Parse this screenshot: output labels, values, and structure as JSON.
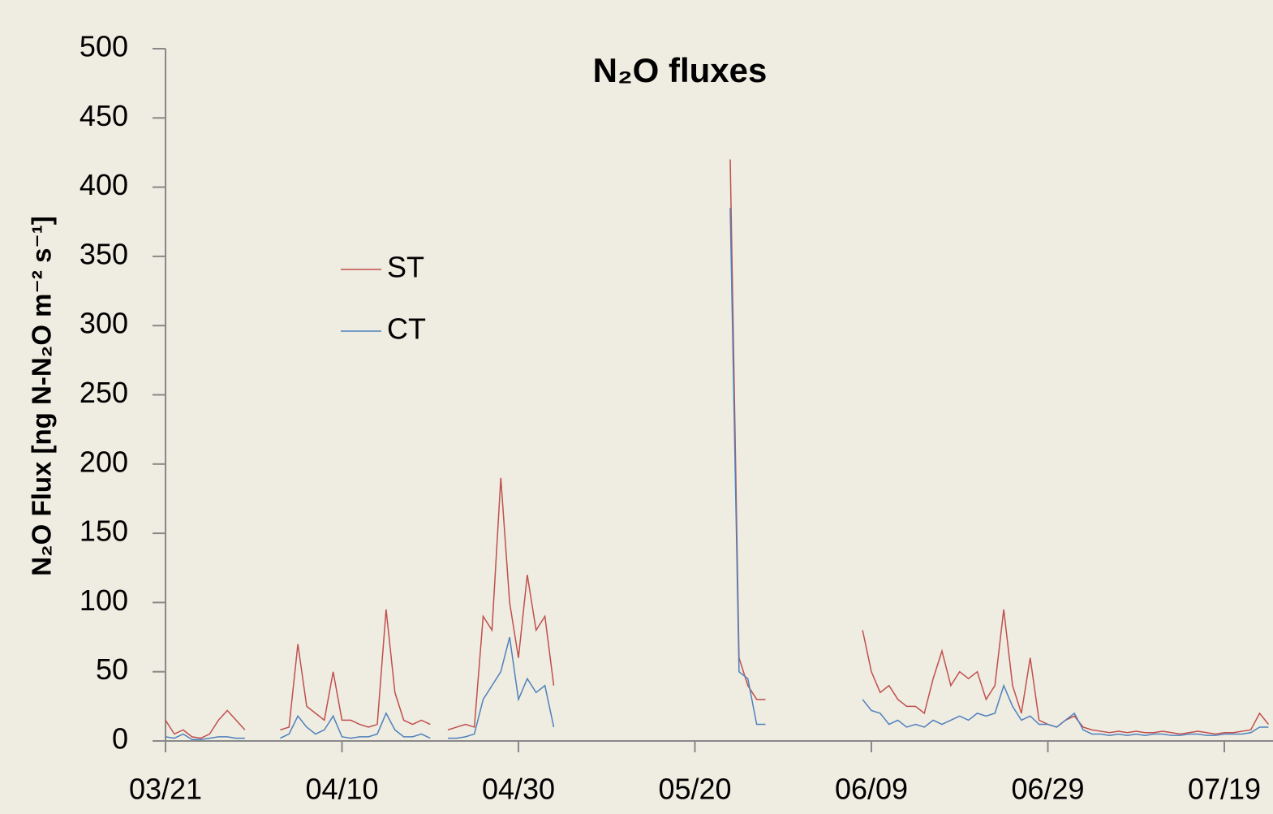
{
  "chart_data": {
    "type": "line",
    "title": "N₂O fluxes",
    "y_label": "N₂O Flux [ng N-N₂O m⁻² s⁻¹]",
    "x": [
      "03/21",
      "03/22",
      "03/23",
      "03/24",
      "03/25",
      "03/26",
      "03/27",
      "03/28",
      "03/29",
      "03/30",
      "03/31",
      "04/01",
      "04/02",
      "04/03",
      "04/04",
      "04/05",
      "04/06",
      "04/07",
      "04/08",
      "04/09",
      "04/10",
      "04/11",
      "04/12",
      "04/13",
      "04/14",
      "04/15",
      "04/16",
      "04/17",
      "04/18",
      "04/19",
      "04/20",
      "04/21",
      "04/22",
      "04/23",
      "04/24",
      "04/25",
      "04/26",
      "04/27",
      "04/28",
      "04/29",
      "04/30",
      "05/01",
      "05/02",
      "05/03",
      "05/04",
      "05/05",
      "05/06",
      "05/07",
      "05/08",
      "05/09",
      "05/10",
      "05/11",
      "05/12",
      "05/13",
      "05/14",
      "05/15",
      "05/16",
      "05/17",
      "05/18",
      "05/19",
      "05/20",
      "05/21",
      "05/22",
      "05/23",
      "05/24",
      "05/25",
      "05/26",
      "05/27",
      "05/28",
      "05/29",
      "05/30",
      "05/31",
      "06/01",
      "06/02",
      "06/03",
      "06/04",
      "06/05",
      "06/06",
      "06/07",
      "06/08",
      "06/09",
      "06/10",
      "06/11",
      "06/12",
      "06/13",
      "06/14",
      "06/15",
      "06/16",
      "06/17",
      "06/18",
      "06/19",
      "06/20",
      "06/21",
      "06/22",
      "06/23",
      "06/24",
      "06/25",
      "06/26",
      "06/27",
      "06/28",
      "06/29",
      "06/30",
      "07/01",
      "07/02",
      "07/03",
      "07/04",
      "07/05",
      "07/06",
      "07/07",
      "07/08",
      "07/09",
      "07/10",
      "07/11",
      "07/12",
      "07/13",
      "07/14",
      "07/15",
      "07/16",
      "07/17",
      "07/18",
      "07/19",
      "07/20",
      "07/21",
      "07/22",
      "07/23",
      "07/24"
    ],
    "series": [
      {
        "name": "ST",
        "color": "#c0504d",
        "values": [
          15,
          5,
          8,
          3,
          2,
          5,
          15,
          22,
          15,
          8,
          null,
          null,
          null,
          8,
          10,
          70,
          25,
          20,
          15,
          50,
          15,
          15,
          12,
          10,
          12,
          95,
          35,
          15,
          12,
          15,
          12,
          null,
          8,
          10,
          12,
          10,
          90,
          80,
          190,
          100,
          60,
          120,
          80,
          90,
          40,
          null,
          null,
          null,
          null,
          null,
          null,
          null,
          null,
          null,
          null,
          null,
          null,
          null,
          null,
          null,
          null,
          null,
          null,
          null,
          420,
          60,
          40,
          30,
          30,
          null,
          null,
          null,
          null,
          null,
          null,
          null,
          null,
          null,
          null,
          80,
          50,
          35,
          40,
          30,
          25,
          25,
          20,
          45,
          65,
          40,
          50,
          45,
          50,
          30,
          40,
          95,
          40,
          20,
          60,
          15,
          12,
          10,
          15,
          18,
          10,
          8,
          7,
          6,
          7,
          6,
          7,
          6,
          6,
          7,
          6,
          5,
          6,
          7,
          6,
          5,
          6,
          6,
          7,
          8,
          20,
          12
        ]
      },
      {
        "name": "CT",
        "color": "#4f81bd",
        "values": [
          3,
          2,
          5,
          1,
          1,
          2,
          3,
          3,
          2,
          2,
          null,
          null,
          null,
          2,
          5,
          18,
          10,
          5,
          8,
          18,
          3,
          2,
          3,
          3,
          5,
          20,
          8,
          3,
          3,
          5,
          2,
          null,
          2,
          2,
          3,
          5,
          30,
          40,
          50,
          75,
          30,
          45,
          35,
          40,
          10,
          null,
          null,
          null,
          null,
          null,
          null,
          null,
          null,
          null,
          null,
          null,
          null,
          null,
          null,
          null,
          null,
          null,
          null,
          null,
          385,
          50,
          45,
          12,
          12,
          null,
          null,
          null,
          null,
          null,
          null,
          null,
          null,
          null,
          null,
          30,
          22,
          20,
          12,
          15,
          10,
          12,
          10,
          15,
          12,
          15,
          18,
          15,
          20,
          18,
          20,
          40,
          25,
          15,
          18,
          12,
          12,
          10,
          15,
          20,
          8,
          5,
          5,
          4,
          5,
          4,
          5,
          4,
          5,
          5,
          4,
          4,
          5,
          5,
          4,
          4,
          5,
          5,
          5,
          6,
          10,
          10
        ]
      }
    ],
    "xticks": [
      "03/21",
      "04/10",
      "04/30",
      "05/20",
      "06/09",
      "06/29",
      "07/19"
    ],
    "ylim": [
      0,
      500
    ],
    "yticks": [
      0,
      50,
      100,
      150,
      200,
      250,
      300,
      350,
      400,
      450,
      500
    ]
  }
}
